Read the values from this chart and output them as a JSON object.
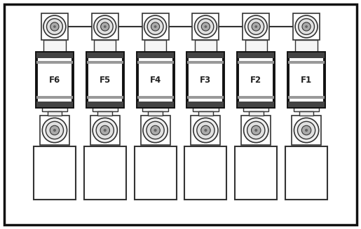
{
  "fuse_labels": [
    "F6",
    "F5",
    "F4",
    "F3",
    "F2",
    "F1"
  ],
  "n_fuses": 6,
  "fig_bg": "#ffffff",
  "outer_bg": "#ffffff",
  "line_color": "#333333",
  "bold_line_color": "#111111",
  "label_fontsize": 8.5,
  "figsize": [
    5.15,
    3.27
  ],
  "dpi": 100
}
